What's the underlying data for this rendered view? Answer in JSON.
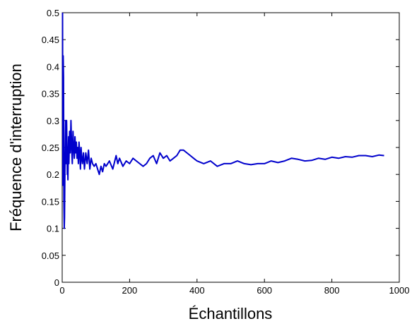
{
  "chart_data": {
    "type": "line",
    "title": "",
    "xlabel": "Échantillons",
    "ylabel": "Fréquence d'interruption",
    "xlim": [
      0,
      1000
    ],
    "ylim": [
      0,
      0.5
    ],
    "xticks": [
      0,
      200,
      400,
      600,
      800,
      1000
    ],
    "xtick_labels": [
      "0",
      "200",
      "400",
      "600",
      "800",
      "1000"
    ],
    "yticks": [
      0,
      0.05,
      0.1,
      0.15,
      0.2,
      0.25,
      0.3,
      0.35,
      0.4,
      0.45,
      0.5
    ],
    "ytick_labels": [
      "0",
      "0.05",
      "0.1",
      "0.15",
      "0.2",
      "0.25",
      "0.3",
      "0.35",
      "0.4",
      "0.45",
      "0.5"
    ],
    "grid": false,
    "line_color": "#0000cc",
    "series": [
      {
        "x": [
          1,
          2,
          3,
          4,
          5,
          6,
          7,
          8,
          9,
          10,
          11,
          12,
          13,
          14,
          15,
          16,
          17,
          18,
          19,
          20,
          22,
          24,
          26,
          28,
          30,
          32,
          34,
          36,
          38,
          40,
          42,
          44,
          46,
          48,
          50,
          52,
          54,
          56,
          58,
          60,
          63,
          66,
          70,
          74,
          78,
          82,
          86,
          90,
          95,
          100,
          105,
          110,
          115,
          120,
          125,
          130,
          140,
          150,
          160,
          165,
          170,
          180,
          190,
          200,
          210,
          220,
          230,
          240,
          250,
          260,
          270,
          280,
          290,
          300,
          310,
          320,
          330,
          340,
          350,
          360,
          370,
          380,
          390,
          400,
          420,
          440,
          460,
          480,
          500,
          520,
          540,
          560,
          580,
          600,
          620,
          640,
          660,
          680,
          700,
          720,
          740,
          760,
          780,
          800,
          820,
          840,
          860,
          880,
          900,
          920,
          940,
          955
        ],
        "y": [
          0.5,
          0.18,
          0.42,
          0.38,
          0.15,
          0.1,
          0.12,
          0.2,
          0.25,
          0.3,
          0.27,
          0.22,
          0.3,
          0.26,
          0.2,
          0.23,
          0.19,
          0.24,
          0.27,
          0.22,
          0.28,
          0.24,
          0.3,
          0.25,
          0.22,
          0.28,
          0.25,
          0.23,
          0.27,
          0.24,
          0.26,
          0.23,
          0.25,
          0.22,
          0.26,
          0.24,
          0.21,
          0.25,
          0.23,
          0.22,
          0.24,
          0.21,
          0.24,
          0.22,
          0.245,
          0.21,
          0.23,
          0.22,
          0.215,
          0.22,
          0.21,
          0.2,
          0.215,
          0.205,
          0.22,
          0.215,
          0.225,
          0.21,
          0.235,
          0.22,
          0.23,
          0.215,
          0.225,
          0.22,
          0.23,
          0.225,
          0.22,
          0.215,
          0.22,
          0.23,
          0.235,
          0.22,
          0.24,
          0.23,
          0.235,
          0.225,
          0.23,
          0.235,
          0.245,
          0.245,
          0.24,
          0.235,
          0.23,
          0.225,
          0.22,
          0.225,
          0.215,
          0.22,
          0.22,
          0.225,
          0.22,
          0.218,
          0.22,
          0.22,
          0.225,
          0.222,
          0.225,
          0.23,
          0.228,
          0.225,
          0.226,
          0.23,
          0.228,
          0.232,
          0.23,
          0.233,
          0.232,
          0.235,
          0.235,
          0.233,
          0.236,
          0.235
        ]
      }
    ]
  }
}
